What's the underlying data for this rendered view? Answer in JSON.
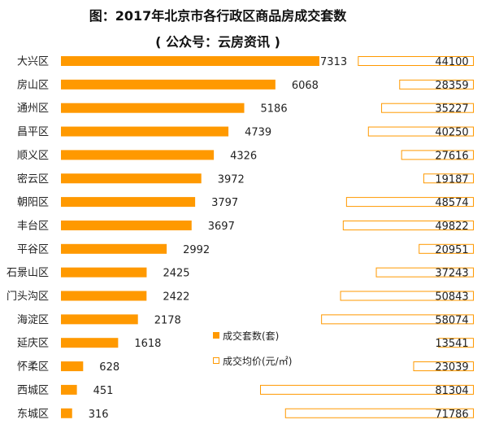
{
  "chart_data": {
    "type": "bar",
    "title": "图：2017年北京市各行政区商品房成交套数",
    "subtitle": "( 公众号：云房资讯 )",
    "categories": [
      "大兴区",
      "房山区",
      "通州区",
      "昌平区",
      "顺义区",
      "密云区",
      "朝阳区",
      "丰台区",
      "平谷区",
      "石景山区",
      "门头沟区",
      "海淀区",
      "延庆区",
      "怀柔区",
      "西城区",
      "东城区"
    ],
    "series": [
      {
        "name": "成交套数(套)",
        "color": "#ff9900",
        "values": [
          7313,
          6068,
          5186,
          4739,
          4326,
          3972,
          3797,
          3697,
          2992,
          2425,
          2422,
          2178,
          1618,
          628,
          451,
          316
        ]
      },
      {
        "name": "成交均价(元/㎡)",
        "color": "#ff9900",
        "style": "outline",
        "values": [
          44100,
          28359,
          35227,
          40250,
          27616,
          19187,
          48574,
          49822,
          20951,
          37243,
          50843,
          58074,
          13541,
          23039,
          81304,
          71786
        ]
      }
    ],
    "legend": "center-bottom",
    "grid": false
  }
}
